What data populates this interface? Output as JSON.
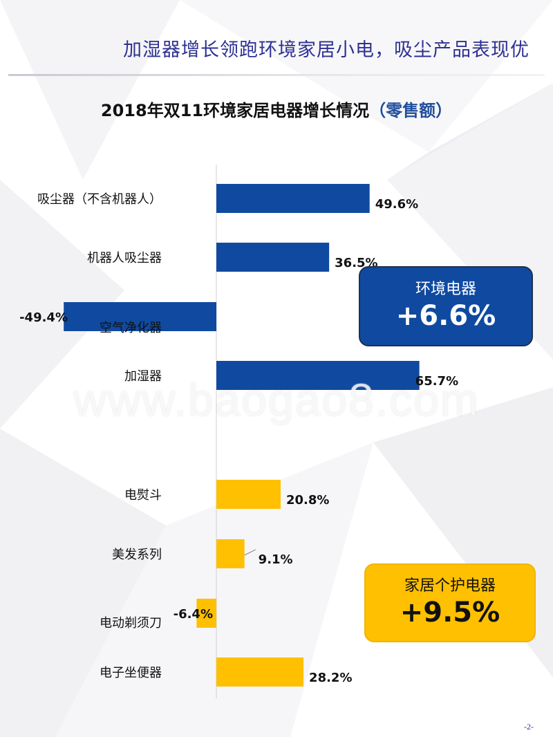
{
  "header": {
    "title": "加湿器增长领跑环境家居小电，吸尘产品表现优"
  },
  "chart_title": {
    "main": "2018年双11环境家居电器增长情况",
    "sub": "（零售额）"
  },
  "chart_data": {
    "type": "bar",
    "orientation": "horizontal",
    "title": "2018年双11环境家居电器增长情况（零售额）",
    "categories": [
      "吸尘器（不含机器人）",
      "机器人吸尘器",
      "空气净化器",
      "加湿器",
      "电熨斗",
      "美发系列",
      "电动剃须刀",
      "电子坐便器"
    ],
    "values": [
      49.6,
      36.5,
      -49.4,
      65.7,
      20.8,
      9.1,
      -6.4,
      28.2
    ],
    "value_labels": [
      "49.6%",
      "36.5%",
      "-49.4%",
      "65.7%",
      "20.8%",
      "9.1%",
      "-6.4%",
      "28.2%"
    ],
    "groups": [
      "env",
      "env",
      "env",
      "env",
      "care",
      "care",
      "care",
      "care"
    ],
    "group_colors": {
      "env": "#0f4aa0",
      "care": "#fec000"
    },
    "unit": "%"
  },
  "summary": {
    "env": {
      "label": "环境电器",
      "value": "+6.6%"
    },
    "care": {
      "label": "家居个护电器",
      "value": "+9.5%"
    }
  },
  "watermark": "www.baogao8.com",
  "page_number": "-2-"
}
